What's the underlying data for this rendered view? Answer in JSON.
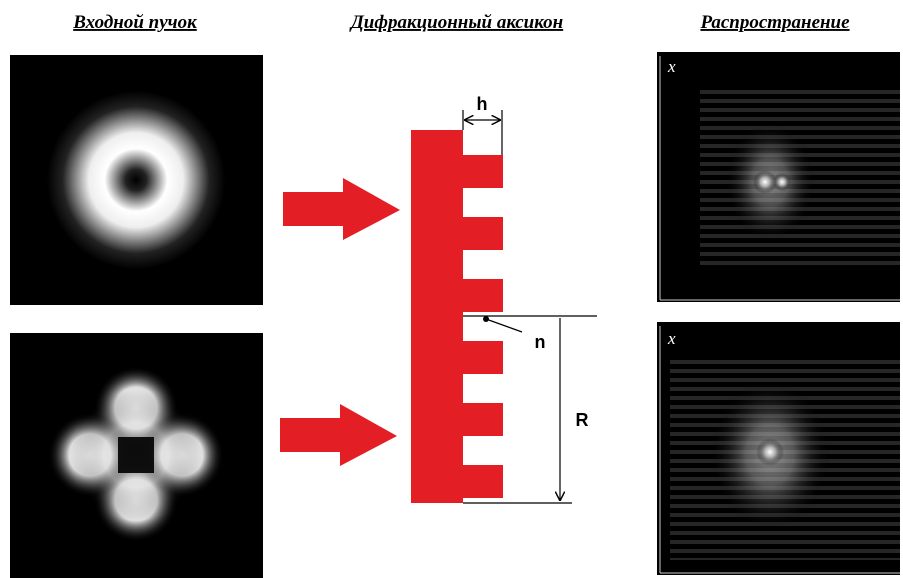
{
  "headers": [
    "Входной пучок",
    "Дифракционный аксикон",
    "Распространение"
  ],
  "labels": {
    "h": "h",
    "n": "n",
    "R": "R",
    "axis_top": "x",
    "axis_bottom": "x"
  }
}
